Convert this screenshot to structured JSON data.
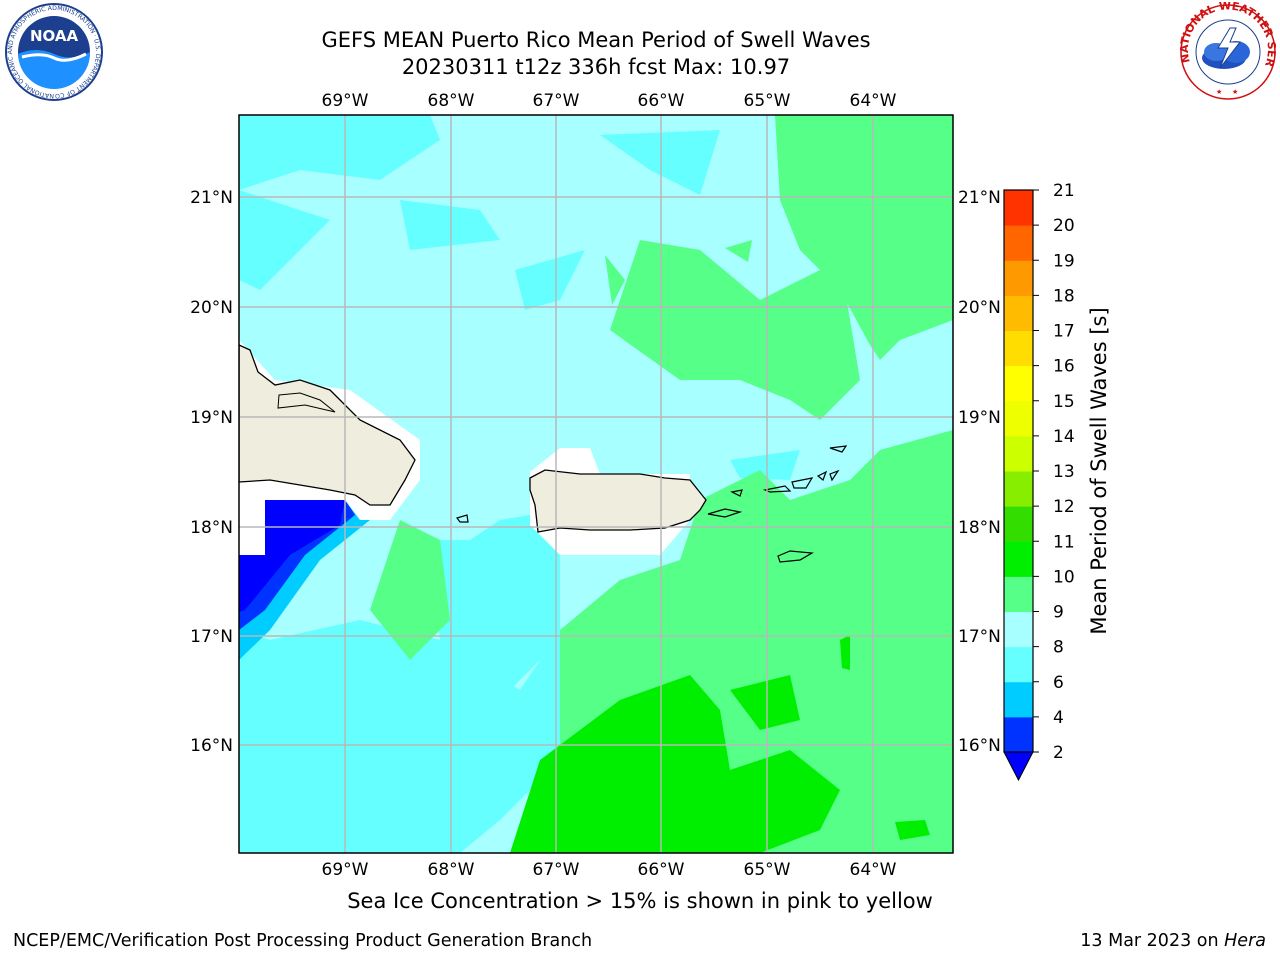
{
  "header": {
    "title_line1": "GEFS MEAN Puerto Rico Mean Period of Swell Waves",
    "title_line2": "20230311 t12z 336h fcst   Max: 10.97"
  },
  "map": {
    "lon_labels": [
      "69°W",
      "68°W",
      "67°W",
      "66°W",
      "65°W",
      "64°W"
    ],
    "lat_labels": [
      "21°N",
      "20°N",
      "19°N",
      "18°N",
      "17°N",
      "16°N"
    ],
    "land_color": "#efedde",
    "no_data_color": "#ffffff",
    "grid_color": "#b8b8b8"
  },
  "colorbar": {
    "label": "Mean Period of Swell Waves [s]",
    "ticks": [
      "2",
      "4",
      "6",
      "8",
      "9",
      "10",
      "11",
      "12",
      "13",
      "14",
      "15",
      "16",
      "17",
      "18",
      "19",
      "20",
      "21"
    ],
    "colors": [
      "#0033ff",
      "#00ccff",
      "#66ffff",
      "#a8ffff",
      "#55ff88",
      "#00ee00",
      "#33dd00",
      "#88ee00",
      "#ccff00",
      "#eeff00",
      "#ffff00",
      "#ffdd00",
      "#ffbb00",
      "#ff9900",
      "#ff6600",
      "#ff3300"
    ],
    "extend_color": "#0000ff"
  },
  "note": "Sea Ice Concentration > 15% is shown in pink to yellow",
  "footer": {
    "left": "NCEP/EMC/Verification Post Processing Product Generation Branch",
    "date": "13 Mar 2023 on ",
    "host": "Hera"
  },
  "logos": {
    "noaa_text": "NOAA",
    "noaa_ring": "NATIONAL OCEANIC AND ATMOSPHERIC ADMINISTRATION · U.S. DEPARTMENT OF COMMERCE",
    "nws_ring": "NATIONAL WEATHER SERVICE"
  }
}
